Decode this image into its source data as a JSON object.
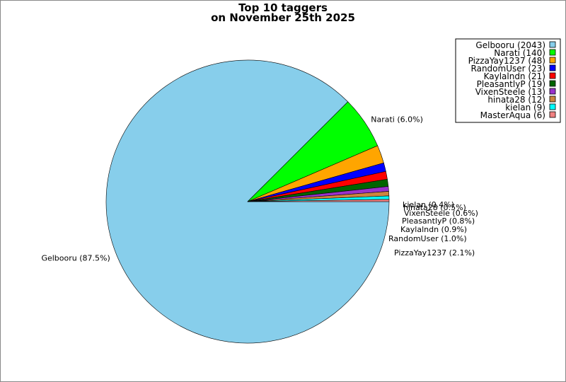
{
  "chart_data": {
    "type": "pie",
    "title": "Top 10 taggers",
    "subtitle": "on November 25th 2025",
    "slices": [
      {
        "name": "Gelbooru",
        "value": 2043,
        "label": "Gelbooru (87.5%)",
        "legend": "Gelbooru (2043)",
        "color": "#87ceeb"
      },
      {
        "name": "Narati",
        "value": 140,
        "label": "Narati (6.0%)",
        "legend": "Narati (140)",
        "color": "#00ff00"
      },
      {
        "name": "PizzaYay1237",
        "value": 48,
        "label": "PizzaYay1237 (2.1%)",
        "legend": "PizzaYay1237 (48)",
        "color": "#ffa500"
      },
      {
        "name": "RandomUser",
        "value": 23,
        "label": "RandomUser (1.0%)",
        "legend": "RandomUser (23)",
        "color": "#0000ff"
      },
      {
        "name": "Kaylalndn",
        "value": 21,
        "label": "Kaylalndn (0.9%)",
        "legend": "Kaylalndn (21)",
        "color": "#ff0000"
      },
      {
        "name": "PleasantlyP",
        "value": 19,
        "label": "PleasantlyP (0.8%)",
        "legend": "PleasantlyP (19)",
        "color": "#006400"
      },
      {
        "name": "VixenSteele",
        "value": 13,
        "label": "VixenSteele (0.6%)",
        "legend": "VixenSteele (13)",
        "color": "#9932cc"
      },
      {
        "name": "hinata28",
        "value": 12,
        "label": "hinata28 (0.5%)",
        "legend": "hinata28 (12)",
        "color": "#cd853f"
      },
      {
        "name": "kielan",
        "value": 9,
        "label": "kielan (0.4%)",
        "legend": "kielan (9)",
        "color": "#00ffff"
      },
      {
        "name": "MasterAqua",
        "value": 6,
        "label": "",
        "legend": "MasterAqua (6)",
        "color": "#f08080"
      }
    ],
    "legend_position": "top-right"
  }
}
